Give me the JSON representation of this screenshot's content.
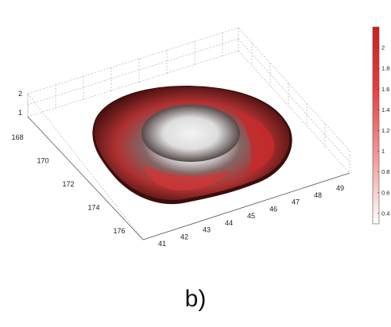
{
  "panel_label": "b)",
  "chart_data": {
    "type": "surface3d",
    "x_axis": {
      "ticks": [
        "41",
        "42",
        "43",
        "44",
        "45",
        "46",
        "47",
        "48",
        "49"
      ],
      "range": [
        41,
        49
      ]
    },
    "y_axis": {
      "ticks": [
        "168",
        "170",
        "172",
        "174",
        "176"
      ],
      "range": [
        167,
        177
      ]
    },
    "z_axis": {
      "ticks": [
        "1",
        "2"
      ]
    },
    "colorbar": {
      "ticks": [
        "0.4",
        "0.6",
        "0.8",
        "1",
        "1.2",
        "1.4",
        "1.6",
        "1.8",
        "2"
      ],
      "range": [
        0.3,
        2.2
      ],
      "colormap": [
        "#ffffff",
        "#f7a3a3",
        "#e83a3a",
        "#d01e1e"
      ]
    },
    "grid": true,
    "surface": "ring-shaped (toroidal) surface with a central depression; low values (white) near the centre, high values (red) on the outer rim"
  }
}
